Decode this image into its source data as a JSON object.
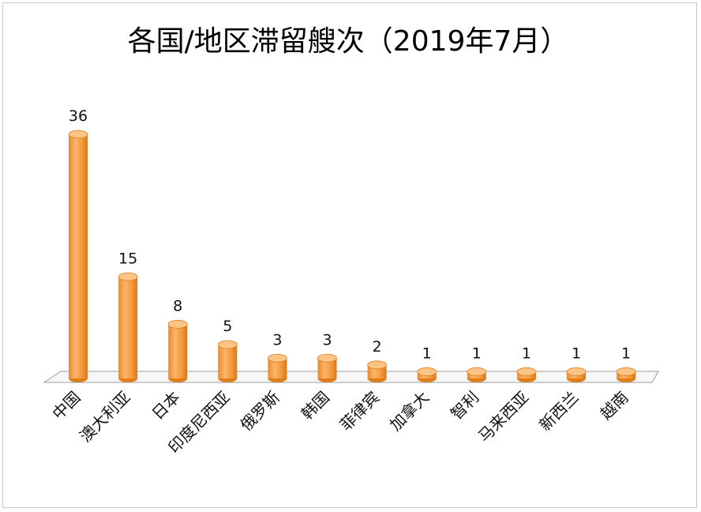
{
  "chart_data": {
    "type": "bar",
    "title": "各国/地区滞留艘次（2019年7月）",
    "categories": [
      "中国",
      "澳大利亚",
      "日本",
      "印度尼西亚",
      "俄罗斯",
      "韩国",
      "菲律宾",
      "加拿大",
      "智利",
      "马来西亚",
      "新西兰",
      "越南"
    ],
    "values": [
      36,
      15,
      8,
      5,
      3,
      3,
      2,
      1,
      1,
      1,
      1,
      1
    ],
    "ylim": [
      0,
      36
    ],
    "grid": false,
    "legend": "none",
    "bar_color": "#F7A14A",
    "bar_shade_color": "#E07E1C",
    "xlabel": "",
    "ylabel": ""
  }
}
